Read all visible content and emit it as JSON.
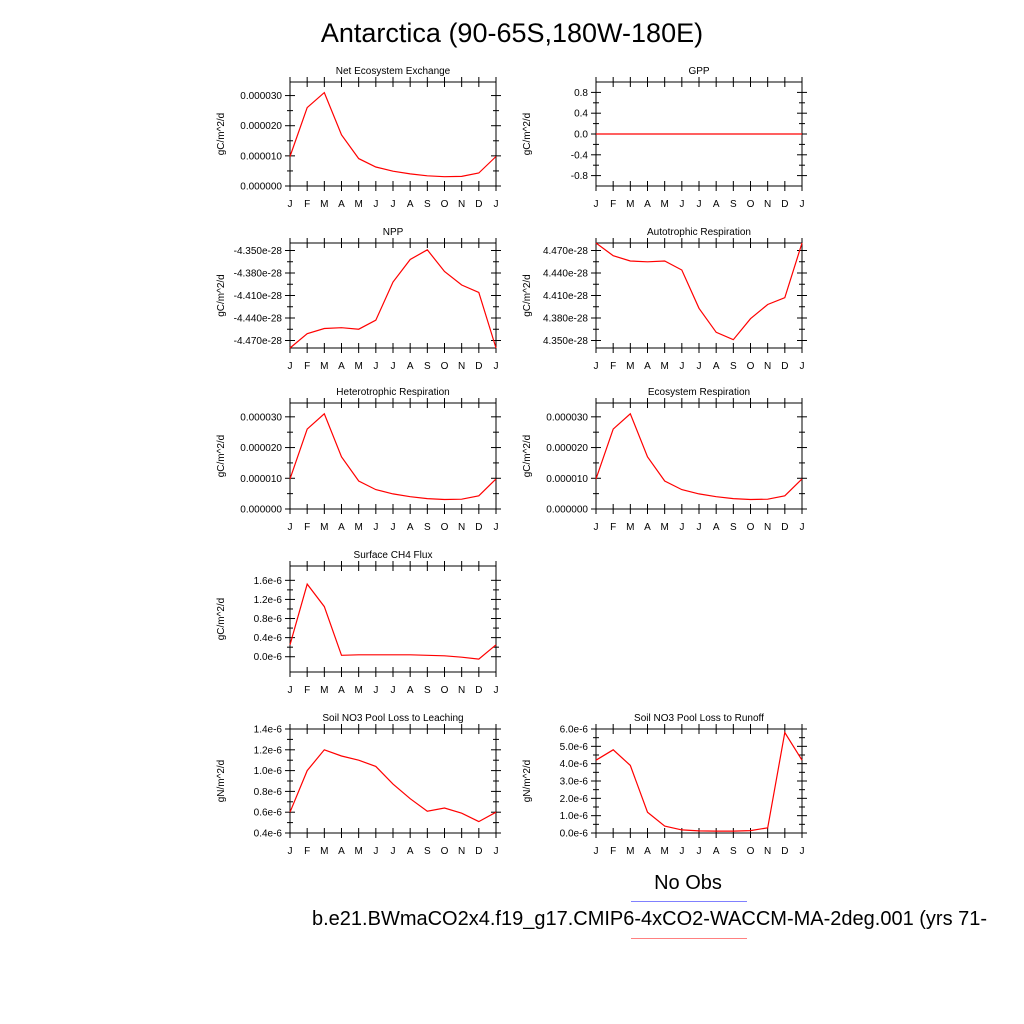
{
  "page": {
    "title": "Antarctica (90-65S,180W-180E)",
    "legend": {
      "obs_label": "No Obs",
      "obs_color": "#8080ff",
      "case_label": "b.e21.BWmaCO2x4.f19_g17.CMIP6-4xCO2-WACCM-MA-2deg.001 (yrs 71-",
      "case_color": "#ff8080"
    }
  },
  "chart_data": [
    {
      "type": "line",
      "title": "Net Ecosystem Exchange",
      "ylabel": "gC/m^2/d",
      "categories": [
        "J",
        "F",
        "M",
        "A",
        "M",
        "J",
        "J",
        "A",
        "S",
        "O",
        "N",
        "D",
        "J"
      ],
      "ylim": [
        0,
        3.45e-05
      ],
      "yticks": [
        0,
        1e-05,
        2e-05,
        3e-05
      ],
      "yticklabels": [
        "0.000000",
        "0.000010",
        "0.000020",
        "0.000030"
      ],
      "grid": false,
      "series": [
        {
          "color": "#ff0000",
          "values": [
            9.8e-06,
            2.6e-05,
            3.1e-05,
            1.7e-05,
            9.1e-06,
            6.3e-06,
            4.9e-06,
            4e-06,
            3.4e-06,
            3.1e-06,
            3.2e-06,
            4.3e-06,
            9.8e-06
          ]
        }
      ]
    },
    {
      "type": "line",
      "title": "GPP",
      "ylabel": "gC/m^2/d",
      "categories": [
        "J",
        "F",
        "M",
        "A",
        "M",
        "J",
        "J",
        "A",
        "S",
        "O",
        "N",
        "D",
        "J"
      ],
      "ylim": [
        -1,
        1
      ],
      "yticks": [
        -0.8,
        -0.4,
        0,
        0.4,
        0.8
      ],
      "yticklabels": [
        "-0.8",
        "-0.4",
        "0.0",
        "0.4",
        "0.8"
      ],
      "grid": false,
      "series": [
        {
          "color": "#ff0000",
          "values": [
            0,
            0,
            0,
            0,
            0,
            0,
            0,
            0,
            0,
            0,
            0,
            0,
            0
          ]
        }
      ]
    },
    {
      "type": "line",
      "title": "NPP",
      "ylabel": "gC/m^2/d",
      "categories": [
        "J",
        "F",
        "M",
        "A",
        "M",
        "J",
        "J",
        "A",
        "S",
        "O",
        "N",
        "D",
        "J"
      ],
      "ylim": [
        -4.48e-28,
        -4.34e-28
      ],
      "yticks": [
        -4.47e-28,
        -4.44e-28,
        -4.41e-28,
        -4.38e-28,
        -4.35e-28
      ],
      "yticklabels": [
        "-4.470e-28",
        "-4.440e-28",
        "-4.410e-28",
        "-4.380e-28",
        "-4.350e-28"
      ],
      "grid": false,
      "series": [
        {
          "color": "#ff0000",
          "values": [
            -4.48e-28,
            -4.461e-28,
            -4.454e-28,
            -4.453e-28,
            -4.455e-28,
            -4.443e-28,
            -4.392e-28,
            -4.362e-28,
            -4.349e-28,
            -4.378e-28,
            -4.396e-28,
            -4.406e-28,
            -4.48e-28
          ]
        }
      ]
    },
    {
      "type": "line",
      "title": "Autotrophic Respiration",
      "ylabel": "gC/m^2/d",
      "categories": [
        "J",
        "F",
        "M",
        "A",
        "M",
        "J",
        "J",
        "A",
        "S",
        "O",
        "N",
        "D",
        "J"
      ],
      "ylim": [
        4.34e-28,
        4.48e-28
      ],
      "yticks": [
        4.35e-28,
        4.38e-28,
        4.41e-28,
        4.44e-28,
        4.47e-28
      ],
      "yticklabels": [
        "4.350e-28",
        "4.380e-28",
        "4.410e-28",
        "4.440e-28",
        "4.470e-28"
      ],
      "grid": false,
      "series": [
        {
          "color": "#ff0000",
          "values": [
            4.48e-28,
            4.463e-28,
            4.456e-28,
            4.455e-28,
            4.456e-28,
            4.444e-28,
            4.393e-28,
            4.361e-28,
            4.351e-28,
            4.379e-28,
            4.398e-28,
            4.407e-28,
            4.48e-28
          ]
        }
      ]
    },
    {
      "type": "line",
      "title": "Heterotrophic Respiration",
      "ylabel": "gC/m^2/d",
      "categories": [
        "J",
        "F",
        "M",
        "A",
        "M",
        "J",
        "J",
        "A",
        "S",
        "O",
        "N",
        "D",
        "J"
      ],
      "ylim": [
        0,
        3.45e-05
      ],
      "yticks": [
        0,
        1e-05,
        2e-05,
        3e-05
      ],
      "yticklabels": [
        "0.000000",
        "0.000010",
        "0.000020",
        "0.000030"
      ],
      "grid": false,
      "series": [
        {
          "color": "#ff0000",
          "values": [
            9.8e-06,
            2.6e-05,
            3.1e-05,
            1.7e-05,
            9.1e-06,
            6.3e-06,
            4.9e-06,
            4e-06,
            3.4e-06,
            3.1e-06,
            3.2e-06,
            4.3e-06,
            9.8e-06
          ]
        }
      ]
    },
    {
      "type": "line",
      "title": "Ecosystem Respiration",
      "ylabel": "gC/m^2/d",
      "categories": [
        "J",
        "F",
        "M",
        "A",
        "M",
        "J",
        "J",
        "A",
        "S",
        "O",
        "N",
        "D",
        "J"
      ],
      "ylim": [
        0,
        3.45e-05
      ],
      "yticks": [
        0,
        1e-05,
        2e-05,
        3e-05
      ],
      "yticklabels": [
        "0.000000",
        "0.000010",
        "0.000020",
        "0.000030"
      ],
      "grid": false,
      "series": [
        {
          "color": "#ff0000",
          "values": [
            9.8e-06,
            2.6e-05,
            3.1e-05,
            1.7e-05,
            9.1e-06,
            6.3e-06,
            4.9e-06,
            4e-06,
            3.4e-06,
            3.1e-06,
            3.2e-06,
            4.3e-06,
            9.8e-06
          ]
        }
      ]
    },
    {
      "type": "line",
      "title": "Surface CH4 Flux",
      "ylabel": "gC/m^2/d",
      "categories": [
        "J",
        "F",
        "M",
        "A",
        "M",
        "J",
        "J",
        "A",
        "S",
        "O",
        "N",
        "D",
        "J"
      ],
      "ylim": [
        -3.2e-07,
        1.9e-06
      ],
      "yticks": [
        0,
        4e-07,
        8e-07,
        1.2e-06,
        1.6e-06
      ],
      "yticklabels": [
        "0.0e-6",
        "0.4e-6",
        "0.8e-6",
        "1.2e-6",
        "1.6e-6"
      ],
      "grid": false,
      "series": [
        {
          "color": "#ff0000",
          "values": [
            2.5e-07,
            1.52e-06,
            1.05e-06,
            3e-08,
            4e-08,
            4e-08,
            4e-08,
            4e-08,
            3e-08,
            2e-08,
            -1e-08,
            -5e-08,
            2.5e-07
          ]
        }
      ]
    },
    {
      "type": "line",
      "title": "Soil NO3 Pool Loss to Leaching",
      "ylabel": "gN/m^2/d",
      "categories": [
        "J",
        "F",
        "M",
        "A",
        "M",
        "J",
        "J",
        "A",
        "S",
        "O",
        "N",
        "D",
        "J"
      ],
      "ylim": [
        4e-07,
        1.4e-06
      ],
      "yticks": [
        4e-07,
        6e-07,
        8e-07,
        1e-06,
        1.2e-06,
        1.4e-06
      ],
      "yticklabels": [
        "0.4e-6",
        "0.6e-6",
        "0.8e-6",
        "1.0e-6",
        "1.2e-6",
        "1.4e-6"
      ],
      "grid": false,
      "series": [
        {
          "color": "#ff0000",
          "values": [
            6e-07,
            1e-06,
            1.2e-06,
            1.14e-06,
            1.1e-06,
            1.04e-06,
            8.7e-07,
            7.3e-07,
            6.1e-07,
            6.4e-07,
            5.9e-07,
            5.1e-07,
            6e-07
          ]
        }
      ]
    },
    {
      "type": "line",
      "title": "Soil NO3 Pool Loss to Runoff",
      "ylabel": "gN/m^2/d",
      "categories": [
        "J",
        "F",
        "M",
        "A",
        "M",
        "J",
        "J",
        "A",
        "S",
        "O",
        "N",
        "D",
        "J"
      ],
      "ylim": [
        0,
        6e-06
      ],
      "yticks": [
        0,
        1e-06,
        2e-06,
        3e-06,
        4e-06,
        5e-06,
        6e-06
      ],
      "yticklabels": [
        "0.0e-6",
        "1.0e-6",
        "2.0e-6",
        "3.0e-6",
        "4.0e-6",
        "5.0e-6",
        "6.0e-6"
      ],
      "grid": false,
      "series": [
        {
          "color": "#ff0000",
          "values": [
            4.2e-06,
            4.8e-06,
            3.9e-06,
            1.2e-06,
            4e-07,
            1.8e-07,
            1.2e-07,
            1.1e-07,
            1.1e-07,
            1.4e-07,
            3e-07,
            5.8e-06,
            4.2e-06
          ]
        }
      ]
    }
  ]
}
